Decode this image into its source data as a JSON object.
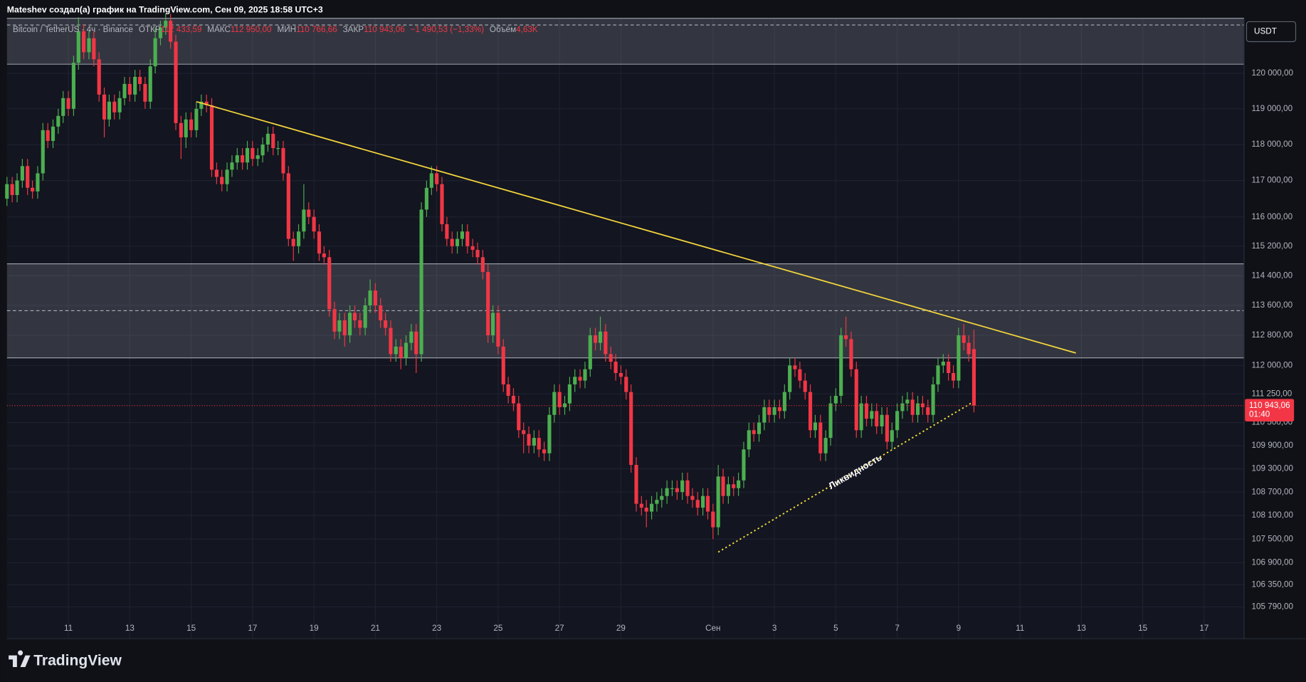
{
  "chart_data": {
    "type": "candlestick",
    "title": "Mateshev создал(а) график на TradingView.com, Сен 09, 2025 18:58 UTC+3",
    "header": {
      "symbol": "Bitcoin / TetherUS · 4ч · Binance",
      "open_label": "ОТКР",
      "open": "112 433,59",
      "high_label": "МАКС",
      "high": "112 950,00",
      "low_label": "МИН",
      "low": "110 766,66",
      "close_label": "ЗАКР",
      "close": "110 943,06",
      "change": "−1 490,53 (−1,33%)",
      "volume_label": "Объём",
      "volume": "4,63K"
    },
    "currency": "USDT",
    "price_label": "110 943,06",
    "countdown": "01:40",
    "annotation": "Ликвидность",
    "brand": "TradingView",
    "up_color": "#4caf50",
    "down_color": "#f23645",
    "log": true,
    "grid": true,
    "xlim": [
      9,
      49.3
    ],
    "xticks": [
      11,
      13,
      15,
      17,
      19,
      21,
      23,
      25,
      27,
      29,
      {
        "value": 32,
        "label": "Сен"
      },
      {
        "value": 34,
        "label": "3"
      },
      {
        "value": 36,
        "label": "5"
      },
      {
        "value": 38,
        "label": "7"
      },
      {
        "value": 40,
        "label": "9"
      },
      {
        "value": 42,
        "label": "11"
      },
      {
        "value": 44,
        "label": "13"
      },
      {
        "value": 46,
        "label": "15"
      },
      {
        "value": 48,
        "label": "17"
      }
    ],
    "ylim": [
      105000,
      121570
    ],
    "yticks": [
      {
        "value": 120000,
        "label": "120 000,00"
      },
      {
        "value": 119000,
        "label": "119 000,00"
      },
      {
        "value": 118000,
        "label": "118 000,00"
      },
      {
        "value": 117000,
        "label": "117 000,00"
      },
      {
        "value": 116000,
        "label": "116 000,00"
      },
      {
        "value": 115200,
        "label": "115 200,00"
      },
      {
        "value": 114400,
        "label": "114 400,00"
      },
      {
        "value": 113600,
        "label": "113 600,00"
      },
      {
        "value": 112800,
        "label": "112 800,00"
      },
      {
        "value": 112000,
        "label": "112 000,00"
      },
      {
        "value": 111250,
        "label": "111 250,00"
      },
      {
        "value": 110500,
        "label": "110 500,00"
      },
      {
        "value": 109900,
        "label": "109 900,00"
      },
      {
        "value": 109300,
        "label": "109 300,00"
      },
      {
        "value": 108700,
        "label": "108 700,00"
      },
      {
        "value": 108100,
        "label": "108 100,00"
      },
      {
        "value": 107500,
        "label": "107 500,00"
      },
      {
        "value": 106900,
        "label": "106 900,00"
      },
      {
        "value": 106350,
        "label": "106 350,00"
      },
      {
        "value": 105790,
        "label": "105 790,00"
      }
    ],
    "zones": [
      {
        "y": [
          120260,
          121570
        ],
        "mid": 121380
      },
      {
        "y": [
          112200,
          114720
        ],
        "mid": 113460
      }
    ],
    "lines": [
      {
        "x": [
          15.17,
          43.82
        ],
        "y": [
          119200,
          112330
        ],
        "color": "#f5d63d",
        "dotted": false
      },
      {
        "x": [
          32.17,
          40.46
        ],
        "y": [
          107170,
          111030
        ],
        "color": "#f5e13d",
        "dotted": true
      }
    ],
    "x": [
      9,
      9.17,
      9.33,
      9.5,
      9.67,
      9.83,
      10,
      10.17,
      10.33,
      10.5,
      10.67,
      10.83,
      11,
      11.17,
      11.33,
      11.5,
      11.67,
      11.83,
      12,
      12.17,
      12.33,
      12.5,
      12.67,
      12.83,
      13,
      13.17,
      13.33,
      13.5,
      13.67,
      13.83,
      14,
      14.17,
      14.33,
      14.5,
      14.67,
      14.83,
      15,
      15.17,
      15.33,
      15.5,
      15.67,
      15.83,
      16,
      16.17,
      16.33,
      16.5,
      16.67,
      16.83,
      17,
      17.17,
      17.33,
      17.5,
      17.67,
      17.83,
      18,
      18.17,
      18.33,
      18.5,
      18.67,
      18.83,
      19,
      19.17,
      19.33,
      19.5,
      19.67,
      19.83,
      20,
      20.17,
      20.33,
      20.5,
      20.67,
      20.83,
      21,
      21.17,
      21.33,
      21.5,
      21.67,
      21.83,
      22,
      22.17,
      22.33,
      22.5,
      22.67,
      22.83,
      23,
      23.17,
      23.33,
      23.5,
      23.67,
      23.83,
      24,
      24.17,
      24.33,
      24.5,
      24.67,
      24.83,
      25,
      25.17,
      25.33,
      25.5,
      25.67,
      25.83,
      26,
      26.17,
      26.33,
      26.5,
      26.67,
      26.83,
      27,
      27.17,
      27.33,
      27.5,
      27.67,
      27.83,
      28,
      28.17,
      28.33,
      28.5,
      28.67,
      28.83,
      29,
      29.17,
      29.33,
      29.5,
      29.67,
      29.83,
      30,
      30.17,
      30.33,
      30.5,
      30.67,
      30.83,
      31,
      31.17,
      31.33,
      31.5,
      31.67,
      31.83,
      32,
      32.17,
      32.33,
      32.5,
      32.67,
      32.83,
      33,
      33.17,
      33.33,
      33.5,
      33.67,
      33.83,
      34,
      34.17,
      34.33,
      34.5,
      34.67,
      34.83,
      35,
      35.17,
      35.33,
      35.5,
      35.67,
      35.83,
      36,
      36.17,
      36.33,
      36.5,
      36.67,
      36.83,
      37,
      37.17,
      37.33,
      37.5,
      37.67,
      37.83,
      38,
      38.17,
      38.33,
      38.5,
      38.67,
      38.83,
      39,
      39.17,
      39.33,
      39.5,
      39.67,
      39.83,
      40,
      40.17,
      40.33,
      40.5
    ],
    "series": [
      {
        "open": [
          116500,
          116900,
          116600,
          117000,
          117400,
          116800,
          116700,
          117200,
          118400,
          118100,
          118500,
          118800,
          119300,
          119000,
          120300,
          121200,
          120600,
          121000,
          120400,
          119400,
          118700,
          119200,
          118900,
          119300,
          119700,
          119400,
          119900,
          119700,
          119200,
          120200,
          121000,
          121300,
          121500,
          120900,
          118600,
          118200,
          118700,
          118400,
          119000,
          119200,
          119100,
          117300,
          117100,
          116900,
          117300,
          117500,
          117700,
          117500,
          117900,
          117600,
          117700,
          118000,
          118300,
          117900,
          117900,
          117200,
          115400,
          115200,
          115600,
          116200,
          116000,
          115600,
          115000,
          114900,
          113500,
          112900,
          113200,
          112800,
          113400,
          113200,
          113000,
          113600,
          114000,
          113600,
          113200,
          113000,
          112300,
          112500,
          112200,
          112600,
          112900,
          112300,
          116200,
          116800,
          117200,
          116900,
          115800,
          115400,
          115200,
          115400,
          115600,
          115200,
          115100,
          114900,
          114500,
          112800,
          113400,
          112500,
          111500,
          111200,
          111000,
          110300,
          110200,
          109900,
          110100,
          109800,
          109700,
          110700,
          111300,
          110900,
          111000,
          111500,
          111700,
          111600,
          111900,
          112800,
          112600,
          112900,
          112300,
          112100,
          111800,
          111700,
          111300,
          109400,
          108400,
          108300,
          108200,
          108400,
          108500,
          108600,
          108800,
          108800,
          108700,
          109000,
          108600,
          108500,
          108300,
          108600,
          108200,
          107800,
          109100,
          108600,
          108900,
          108800,
          109000,
          109800,
          110300,
          110200,
          110500,
          110900,
          110700,
          110900,
          110800,
          111300,
          112000,
          111900,
          111600,
          111300,
          110300,
          110500,
          109700,
          110100,
          111000,
          111200,
          112800,
          112700,
          111900,
          110300,
          111000,
          110600,
          110800,
          110400,
          110700,
          110000,
          110300,
          110800,
          111000,
          111100,
          110700,
          111000,
          110900,
          110700,
          111500,
          112000,
          112100,
          111800,
          111600,
          112800,
          112600,
          112433.59
        ],
        "high": [
          117100,
          117100,
          117200,
          117600,
          117600,
          117000,
          117400,
          118600,
          118600,
          118700,
          119000,
          119500,
          119500,
          120500,
          121600,
          121400,
          121200,
          121200,
          120600,
          119600,
          119400,
          119400,
          119500,
          119900,
          119900,
          120100,
          120100,
          119900,
          120400,
          121300,
          121500,
          121700,
          121700,
          121100,
          118800,
          118900,
          118900,
          119200,
          119400,
          119400,
          119300,
          117500,
          117300,
          117500,
          117700,
          117900,
          117900,
          118100,
          118100,
          117900,
          118200,
          118500,
          118500,
          118100,
          118100,
          117400,
          115600,
          115800,
          116900,
          116400,
          116200,
          115800,
          115200,
          115100,
          113700,
          113400,
          113400,
          113600,
          113600,
          113400,
          113800,
          114300,
          114200,
          113800,
          113400,
          113200,
          112700,
          112700,
          112800,
          113100,
          113100,
          116400,
          117000,
          117400,
          117400,
          117100,
          116000,
          115600,
          115600,
          115800,
          115800,
          115400,
          115300,
          115100,
          114700,
          113600,
          113600,
          112700,
          111700,
          111400,
          111200,
          110500,
          110400,
          110300,
          110300,
          110000,
          110900,
          111500,
          111500,
          111200,
          111700,
          111900,
          111900,
          112100,
          113000,
          113000,
          113300,
          113100,
          112500,
          112300,
          112000,
          111900,
          111500,
          109600,
          108600,
          108500,
          108600,
          108700,
          108800,
          109000,
          109000,
          109000,
          109200,
          109200,
          108800,
          108700,
          108800,
          108800,
          108400,
          109400,
          109300,
          109100,
          109100,
          109200,
          110000,
          110500,
          110500,
          110700,
          111100,
          111100,
          111100,
          111100,
          111500,
          112200,
          112200,
          112100,
          111800,
          111500,
          110700,
          110700,
          110300,
          111200,
          111400,
          113000,
          113300,
          112900,
          112100,
          111200,
          111200,
          111000,
          111000,
          110900,
          110900,
          110500,
          111000,
          111200,
          111300,
          111300,
          111200,
          111200,
          111100,
          111700,
          112200,
          112300,
          112300,
          112000,
          113000,
          113100,
          112800,
          112950
        ],
        "low": [
          116300,
          116400,
          116400,
          116800,
          116600,
          116500,
          116500,
          117000,
          117900,
          117900,
          118300,
          118600,
          118800,
          118800,
          120100,
          120400,
          120400,
          120200,
          119200,
          118200,
          118500,
          118700,
          118700,
          119100,
          119200,
          119200,
          119500,
          119000,
          119000,
          120000,
          120800,
          121100,
          120700,
          118400,
          117600,
          117900,
          118200,
          118200,
          118800,
          118900,
          117100,
          116900,
          116700,
          116700,
          117100,
          117300,
          117300,
          117300,
          117400,
          117400,
          117500,
          117800,
          117700,
          117700,
          117000,
          115200,
          114800,
          115000,
          115400,
          115800,
          115400,
          114800,
          114700,
          113300,
          112700,
          112700,
          112500,
          112600,
          113000,
          112800,
          112800,
          113400,
          113400,
          113000,
          112800,
          112100,
          112100,
          111900,
          112000,
          112400,
          111800,
          112100,
          116000,
          116600,
          116700,
          115600,
          115200,
          115000,
          115000,
          115200,
          115000,
          114900,
          114700,
          114300,
          112600,
          112600,
          112300,
          111300,
          111000,
          110800,
          110100,
          109700,
          109700,
          109700,
          109600,
          109500,
          109500,
          110500,
          110700,
          110700,
          110800,
          111300,
          111400,
          111400,
          111700,
          112400,
          112400,
          112100,
          111900,
          111600,
          111500,
          111100,
          109200,
          108200,
          108100,
          107800,
          108000,
          108200,
          108300,
          108400,
          108600,
          108500,
          108500,
          108400,
          108300,
          108100,
          108100,
          108000,
          107500,
          107600,
          108400,
          108400,
          108600,
          108600,
          108800,
          109600,
          110000,
          110000,
          110300,
          110500,
          110500,
          110600,
          110600,
          111100,
          111700,
          111400,
          111100,
          110100,
          110100,
          109500,
          109500,
          109900,
          110800,
          111000,
          112500,
          111700,
          110100,
          110100,
          110400,
          110400,
          110200,
          110200,
          109800,
          109800,
          110100,
          110600,
          110800,
          110500,
          110500,
          110700,
          110500,
          110500,
          111300,
          111800,
          111600,
          111400,
          111400,
          112400,
          112100,
          110766.66
        ],
        "close": [
          116900,
          116600,
          117000,
          117400,
          116800,
          116700,
          117200,
          118400,
          118100,
          118500,
          118800,
          119300,
          119000,
          120300,
          121200,
          120600,
          121000,
          120400,
          119400,
          118700,
          119200,
          118900,
          119300,
          119700,
          119400,
          119900,
          119700,
          119200,
          120200,
          121000,
          121300,
          121500,
          120900,
          118600,
          118200,
          118700,
          118400,
          119000,
          119200,
          119100,
          117300,
          117100,
          116900,
          117300,
          117500,
          117700,
          117500,
          117900,
          117600,
          117700,
          118000,
          118300,
          117900,
          117900,
          117200,
          115400,
          115200,
          115600,
          116200,
          116000,
          115600,
          115000,
          114900,
          113500,
          112900,
          113200,
          112800,
          113400,
          113200,
          113000,
          113600,
          114000,
          113600,
          113200,
          113000,
          112300,
          112500,
          112200,
          112600,
          112900,
          112300,
          116200,
          116800,
          117200,
          116900,
          115800,
          115400,
          115200,
          115400,
          115600,
          115200,
          115100,
          114900,
          114500,
          112800,
          113400,
          112500,
          111500,
          111200,
          111000,
          110300,
          110200,
          109900,
          110100,
          109800,
          109700,
          110700,
          111300,
          110900,
          111000,
          111500,
          111700,
          111600,
          111900,
          112800,
          112600,
          112900,
          112300,
          112100,
          111800,
          111700,
          111300,
          109400,
          108400,
          108300,
          108200,
          108400,
          108500,
          108600,
          108800,
          108800,
          108700,
          109000,
          108600,
          108500,
          108300,
          108600,
          108200,
          107800,
          109100,
          108600,
          108900,
          108800,
          109000,
          109800,
          110300,
          110200,
          110500,
          110900,
          110700,
          110900,
          110800,
          111300,
          112000,
          111900,
          111600,
          111300,
          110300,
          110500,
          109700,
          110100,
          111000,
          111200,
          112800,
          112700,
          111900,
          110300,
          111000,
          110600,
          110800,
          110400,
          110700,
          110000,
          110300,
          110800,
          111000,
          111100,
          110700,
          111000,
          110900,
          110700,
          111500,
          112000,
          112100,
          111800,
          111600,
          112800,
          112600,
          112300,
          110943.06
        ]
      }
    ]
  }
}
